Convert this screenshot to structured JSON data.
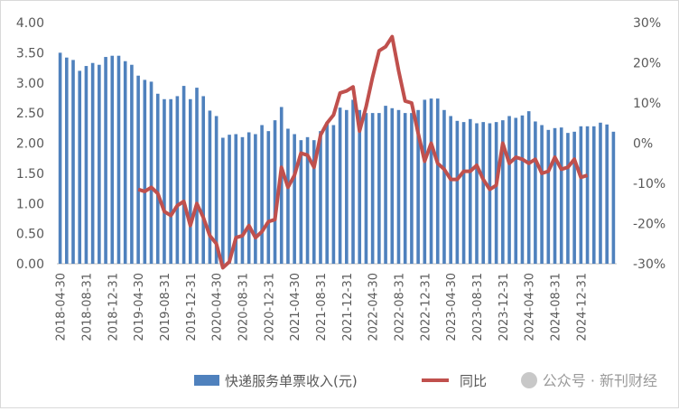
{
  "chart_data": {
    "type": "bar+line",
    "title": "",
    "left_axis": {
      "min": 0,
      "max": 4,
      "step": 0.5,
      "tick_labels": [
        "0.00",
        "0.50",
        "1.00",
        "1.50",
        "2.00",
        "2.50",
        "3.00",
        "3.50",
        "4.00"
      ]
    },
    "right_axis": {
      "min": -30,
      "max": 30,
      "step": 10,
      "tick_labels": [
        "-30%",
        "-20%",
        "-10%",
        "0%",
        "10%",
        "20%",
        "30%"
      ]
    },
    "x_tick_labels": [
      "2018-04-30",
      "2018-08-31",
      "2018-12-31",
      "2019-04-30",
      "2019-08-31",
      "2019-12-31",
      "2020-04-30",
      "2020-08-31",
      "2020-12-31",
      "2021-04-30",
      "2021-08-31",
      "2021-12-31",
      "2022-04-30",
      "2022-08-31",
      "2022-12-31",
      "2023-04-30",
      "2023-08-31",
      "2023-12-31",
      "2024-04-30",
      "2024-08-31",
      "2024-12-31"
    ],
    "series": [
      {
        "name": "快递服务单票收入(元)",
        "type": "bar",
        "axis": "left",
        "color": "#4f81bd",
        "values": [
          3.5,
          3.42,
          3.38,
          3.2,
          3.28,
          3.33,
          3.3,
          3.43,
          3.45,
          3.45,
          3.36,
          3.3,
          3.12,
          3.05,
          3.02,
          2.82,
          2.73,
          2.73,
          2.78,
          2.95,
          2.73,
          2.92,
          2.78,
          2.54,
          2.45,
          2.09,
          2.14,
          2.15,
          2.1,
          2.18,
          2.15,
          2.3,
          2.2,
          2.38,
          2.6,
          2.24,
          2.15,
          2.05,
          2.1,
          2.05,
          2.2,
          2.35,
          2.3,
          2.59,
          2.55,
          2.72,
          2.55,
          2.5,
          2.5,
          2.5,
          2.62,
          2.58,
          2.55,
          2.5,
          2.5,
          2.55,
          2.72,
          2.74,
          2.74,
          2.55,
          2.45,
          2.37,
          2.35,
          2.4,
          2.33,
          2.35,
          2.33,
          2.35,
          2.38,
          2.45,
          2.42,
          2.46,
          2.53,
          2.36,
          2.3,
          2.22,
          2.25,
          2.26,
          2.17,
          2.19,
          2.28,
          2.28,
          2.28,
          2.34,
          2.31,
          2.19
        ]
      },
      {
        "name": "同比",
        "type": "line",
        "axis": "right",
        "color": "#c0504d",
        "start_index": 12,
        "values": [
          -11.5,
          -12,
          -11,
          -12.5,
          -17,
          -18,
          -15.5,
          -14.5,
          -20.5,
          -15,
          -18.5,
          -23,
          -25,
          -31,
          -29.5,
          -23.5,
          -23,
          -20.5,
          -23.5,
          -22,
          -19.5,
          -19,
          -6,
          -11,
          -8,
          -2.5,
          -3,
          -6,
          2,
          5,
          7,
          12.5,
          13,
          14,
          3,
          9,
          16.5,
          23,
          24,
          26.5,
          18,
          10.5,
          10,
          2.5,
          -4.5,
          0,
          -5,
          -6.5,
          -9,
          -9,
          -7,
          -7,
          -5.5,
          -9,
          -11.5,
          -10.5,
          0,
          -5,
          -3.5,
          -4,
          -5,
          -4,
          -7.5,
          -7,
          -3.5,
          -6.5,
          -6,
          -4,
          -8.5,
          -8
        ]
      }
    ]
  },
  "watermark": "公众号 · 新刊财经"
}
